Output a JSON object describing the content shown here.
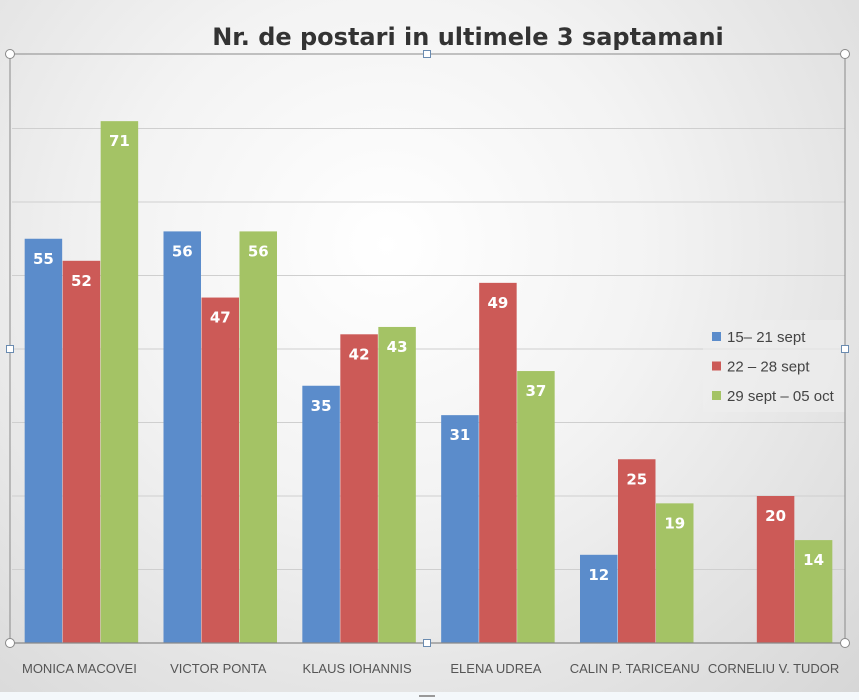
{
  "chart_data": {
    "type": "bar",
    "title": "Nr. de postari in ultimele 3 saptamani",
    "xlabel": "",
    "ylabel": "",
    "ylim": [
      0,
      80
    ],
    "grid": true,
    "legend_position": "right",
    "categories": [
      "MONICA MACOVEI",
      "VICTOR PONTA",
      "KLAUS IOHANNIS",
      "ELENA UDREA",
      "CALIN P. TARICEANU",
      "CORNELIU V. TUDOR"
    ],
    "series": [
      {
        "name": "15– 21 sept",
        "color": "#5b8ccb",
        "values": [
          55,
          56,
          35,
          31,
          12,
          null
        ]
      },
      {
        "name": "22 – 28 sept",
        "color": "#cc5a57",
        "values": [
          52,
          47,
          42,
          49,
          25,
          20
        ]
      },
      {
        "name": "29 sept – 05 oct",
        "color": "#a4c365",
        "values": [
          71,
          56,
          43,
          37,
          19,
          14
        ]
      }
    ]
  }
}
